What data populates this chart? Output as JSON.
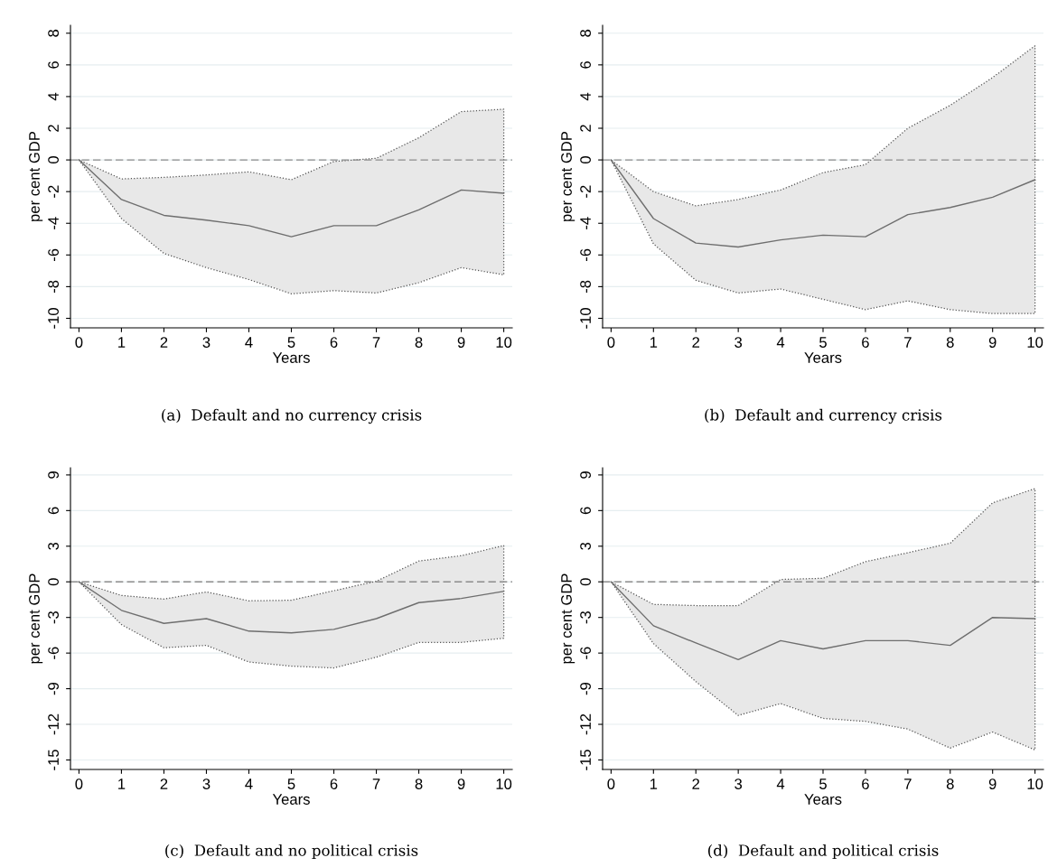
{
  "chart_data": [
    {
      "type": "line",
      "title": "(a)  Default and no currency crisis",
      "xlabel": "Years",
      "ylabel": "per cent GDP",
      "x": [
        0,
        1,
        2,
        3,
        4,
        5,
        6,
        7,
        8,
        9,
        10
      ],
      "series": [
        {
          "color": "#6e6e6e",
          "values": [
            0,
            -2.5,
            -3.5,
            -3.8,
            -4.15,
            -4.85,
            -4.15,
            -4.15,
            -3.15,
            -1.9,
            -2.1
          ],
          "lower": [
            0,
            -3.7,
            -5.9,
            -6.8,
            -7.55,
            -8.45,
            -8.25,
            -8.4,
            -7.75,
            -6.8,
            -7.25
          ],
          "upper": [
            0,
            -1.2,
            -1.1,
            -0.95,
            -0.75,
            -1.25,
            -0.1,
            0.1,
            1.4,
            3.05,
            3.2
          ]
        }
      ],
      "xlim": [
        -0.2,
        10.2
      ],
      "ylim": [
        -10.6,
        8.5
      ],
      "xticks": [
        0,
        1,
        2,
        3,
        4,
        5,
        6,
        7,
        8,
        9,
        10
      ],
      "yticks": [
        -10,
        -8,
        -6,
        -4,
        -2,
        0,
        2,
        4,
        6,
        8
      ],
      "ref_lines": [
        {
          "axis": "y",
          "value": 0,
          "color": "#8c8c8c",
          "line_style": "dashed"
        }
      ],
      "grid": "y",
      "line_style": "solid",
      "marker": "none"
    },
    {
      "type": "line",
      "title": "(b)  Default and currency crisis",
      "xlabel": "Years",
      "ylabel": "per cent GDP",
      "x": [
        0,
        1,
        2,
        3,
        4,
        5,
        6,
        7,
        8,
        9,
        10
      ],
      "series": [
        {
          "color": "#6e6e6e",
          "values": [
            0,
            -3.7,
            -5.25,
            -5.5,
            -5.05,
            -4.75,
            -4.85,
            -3.45,
            -3.0,
            -2.35,
            -1.25
          ],
          "lower": [
            0,
            -5.3,
            -7.6,
            -8.4,
            -8.15,
            -8.8,
            -9.45,
            -8.9,
            -9.45,
            -9.7,
            -9.7
          ],
          "upper": [
            0,
            -2.0,
            -2.9,
            -2.5,
            -1.9,
            -0.8,
            -0.3,
            2.0,
            3.45,
            5.2,
            7.2
          ]
        }
      ],
      "xlim": [
        -0.2,
        10.2
      ],
      "ylim": [
        -10.6,
        8.5
      ],
      "xticks": [
        0,
        1,
        2,
        3,
        4,
        5,
        6,
        7,
        8,
        9,
        10
      ],
      "yticks": [
        -10,
        -8,
        -6,
        -4,
        -2,
        0,
        2,
        4,
        6,
        8
      ],
      "ref_lines": [
        {
          "axis": "y",
          "value": 0,
          "color": "#8c8c8c",
          "line_style": "dashed"
        }
      ],
      "grid": "y",
      "line_style": "solid",
      "marker": "none"
    },
    {
      "type": "line",
      "title": "(c)  Default and no political crisis",
      "xlabel": "Years",
      "ylabel": "per cent GDP",
      "x": [
        0,
        1,
        2,
        3,
        4,
        5,
        6,
        7,
        8,
        9,
        10
      ],
      "series": [
        {
          "color": "#6e6e6e",
          "values": [
            0,
            -2.4,
            -3.5,
            -3.1,
            -4.15,
            -4.3,
            -4.0,
            -3.1,
            -1.75,
            -1.4,
            -0.8
          ],
          "lower": [
            0,
            -3.6,
            -5.55,
            -5.35,
            -6.75,
            -7.1,
            -7.25,
            -6.35,
            -5.1,
            -5.1,
            -4.75
          ],
          "upper": [
            0,
            -1.15,
            -1.45,
            -0.85,
            -1.6,
            -1.55,
            -0.75,
            0.05,
            1.75,
            2.2,
            3.05
          ]
        }
      ],
      "xlim": [
        -0.2,
        10.2
      ],
      "ylim": [
        -15.8,
        9.6
      ],
      "xticks": [
        0,
        1,
        2,
        3,
        4,
        5,
        6,
        7,
        8,
        9,
        10
      ],
      "yticks": [
        -15,
        -12,
        -9,
        -6,
        -3,
        0,
        3,
        6,
        9
      ],
      "ref_lines": [
        {
          "axis": "y",
          "value": 0,
          "color": "#8c8c8c",
          "line_style": "dashed"
        }
      ],
      "grid": "y",
      "line_style": "solid",
      "marker": "none"
    },
    {
      "type": "line",
      "title": "(d)  Default and political crisis",
      "xlabel": "Years",
      "ylabel": "per cent GDP",
      "x": [
        0,
        1,
        2,
        3,
        4,
        5,
        6,
        7,
        8,
        9,
        10
      ],
      "series": [
        {
          "color": "#6e6e6e",
          "values": [
            0,
            -3.7,
            -5.15,
            -6.55,
            -4.95,
            -5.65,
            -4.95,
            -4.95,
            -5.35,
            -3.0,
            -3.1
          ],
          "lower": [
            0,
            -5.2,
            -8.4,
            -11.25,
            -10.25,
            -11.5,
            -11.75,
            -12.4,
            -14.0,
            -12.65,
            -14.15
          ],
          "upper": [
            0,
            -1.9,
            -2.0,
            -2.0,
            0.2,
            0.3,
            1.7,
            2.45,
            3.25,
            6.65,
            7.85
          ]
        }
      ],
      "xlim": [
        -0.2,
        10.2
      ],
      "ylim": [
        -15.8,
        9.6
      ],
      "xticks": [
        0,
        1,
        2,
        3,
        4,
        5,
        6,
        7,
        8,
        9,
        10
      ],
      "yticks": [
        -15,
        -12,
        -9,
        -6,
        -3,
        0,
        3,
        6,
        9
      ],
      "ref_lines": [
        {
          "axis": "y",
          "value": 0,
          "color": "#8c8c8c",
          "line_style": "dashed"
        }
      ],
      "grid": "y",
      "line_style": "solid",
      "marker": "none"
    }
  ]
}
